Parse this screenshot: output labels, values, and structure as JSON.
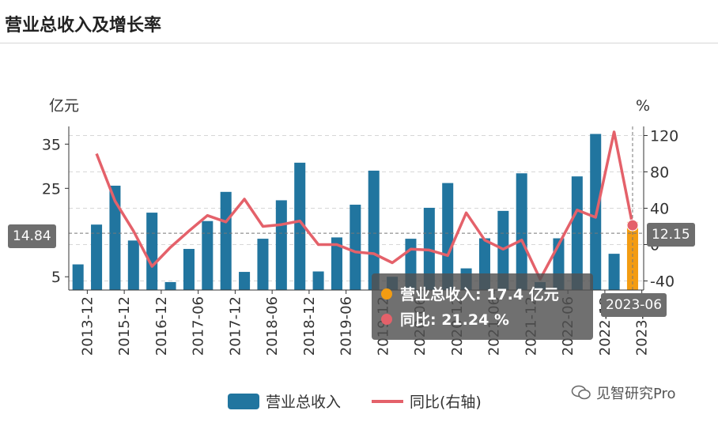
{
  "title": "营业总收入及增长率",
  "chart_data": {
    "type": "bar",
    "left_unit": "亿元",
    "right_unit": "%",
    "left_axis": {
      "min": 2,
      "max": 39,
      "ticks": [
        5,
        25,
        35
      ]
    },
    "right_axis": {
      "min": -50,
      "max": 130,
      "ticks": [
        120,
        80,
        40,
        0,
        -40
      ]
    },
    "tick_labels": [
      "2013-12",
      "2015-12",
      "2016-12",
      "2017-06",
      "2017-12",
      "2018-06",
      "2018-12",
      "2019-06",
      "2019-12",
      "2020-06",
      "2020-12",
      "2021-06",
      "2021-12",
      "2022-06",
      "2022-12",
      "2023-06"
    ],
    "tick_indices": [
      1,
      3,
      5,
      7,
      9,
      11,
      13,
      15,
      17,
      19,
      21,
      23,
      25,
      27,
      29,
      31
    ],
    "series": [
      {
        "name": "营业总收入",
        "type": "bar",
        "color": "#21759f",
        "values": [
          7.8,
          16.8,
          25.6,
          13.2,
          19.5,
          3.8,
          11.3,
          17.6,
          24.2,
          6.1,
          13.6,
          22.3,
          30.8,
          6.2,
          13.9,
          21.3,
          29.0,
          5.0,
          13.6,
          20.6,
          26.2,
          6.9,
          13.7,
          19.9,
          28.4,
          3.8,
          13.7,
          27.7,
          37.3,
          10.2,
          17.4
        ]
      },
      {
        "name": "同比(右轴)",
        "type": "line",
        "color": "#e4616a",
        "values": [
          null,
          100,
          48,
          15,
          -24,
          -3,
          15,
          32,
          25,
          50,
          20,
          22,
          26,
          0,
          0,
          -8,
          -10,
          -20,
          -5,
          -6,
          -12,
          35,
          5,
          -5,
          5,
          -38,
          0,
          38,
          30,
          124,
          21.24
        ]
      }
    ],
    "highlight_index": 30,
    "pointer_left_value": "14.84",
    "pointer_right_value": "12.15",
    "pointer_left_y": 14.84,
    "pointer_right_y": 12.15,
    "highlight_bar_color": "#f39c12",
    "tooltip": {
      "revenue_label": "营业总收入: 17.4  亿元",
      "yoy_label": "同比: 21.24  %",
      "x_label": "2023-06"
    }
  },
  "watermark": "见智研究Pro"
}
